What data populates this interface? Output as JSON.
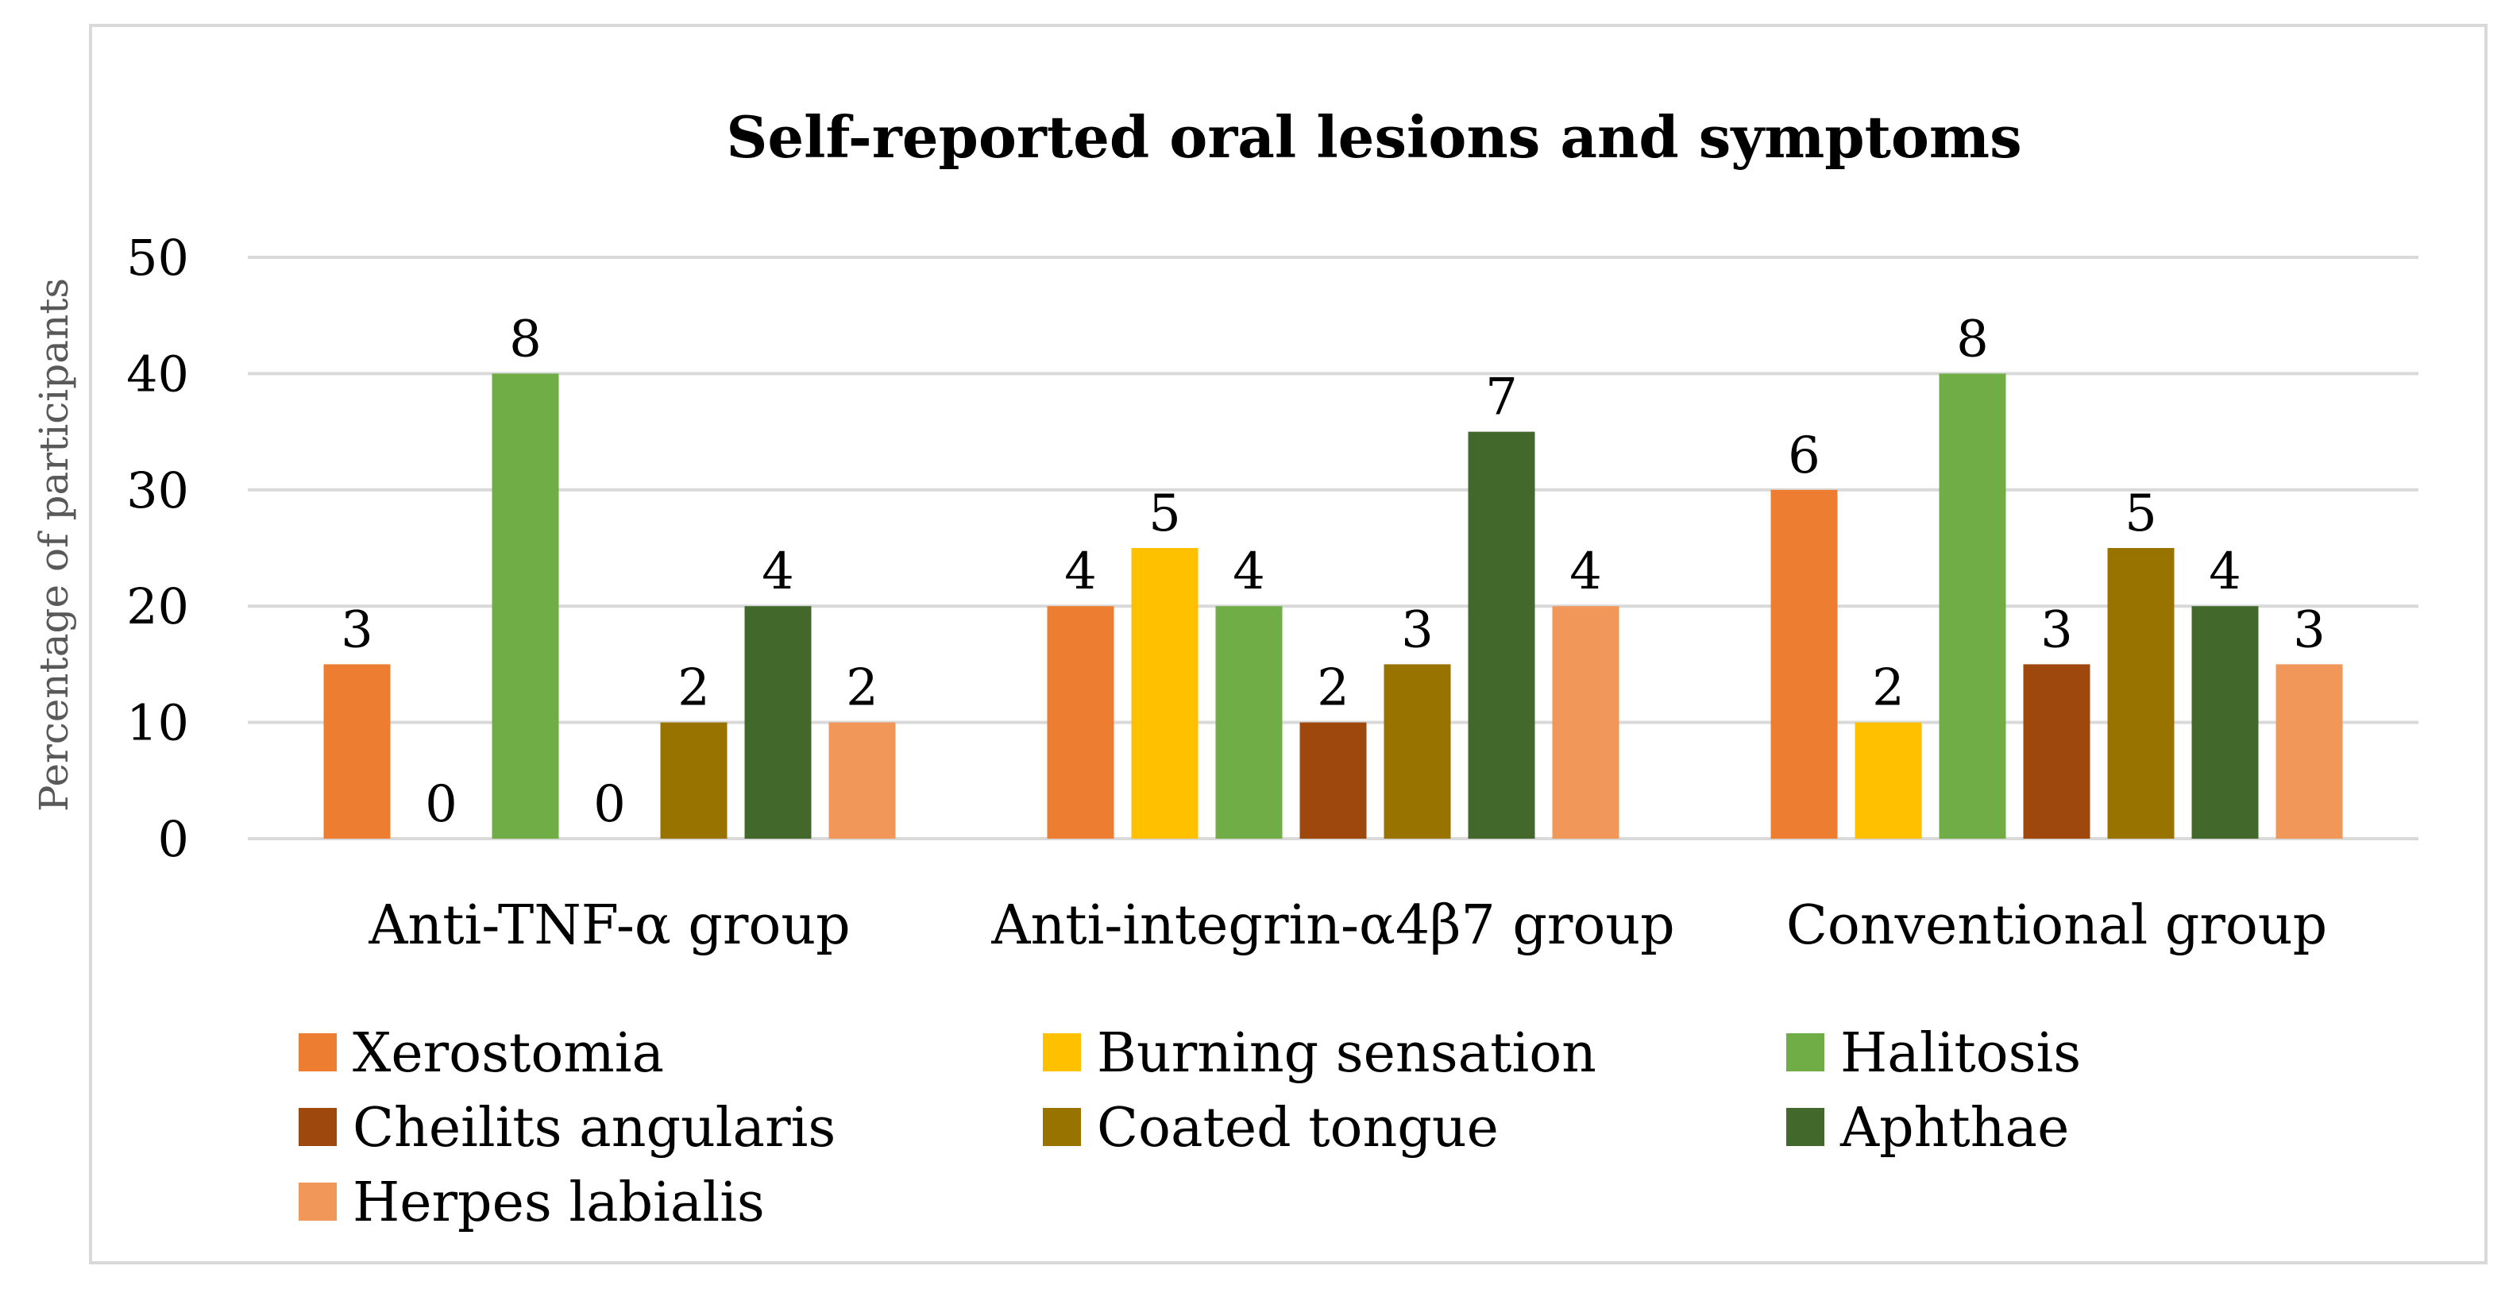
{
  "chart_data": {
    "type": "bar",
    "title": "Self-reported oral lesions and symptoms",
    "xlabel": "",
    "ylabel": "Percentage of participants",
    "ylim": [
      0,
      50
    ],
    "yticks": [
      0,
      10,
      20,
      30,
      40,
      50
    ],
    "grid": true,
    "legend_position": "bottom",
    "categories": [
      "Anti-TNF-α group",
      "Anti-integrin-α4β7 group",
      "Conventional group"
    ],
    "series": [
      {
        "name": "Xerostomia",
        "color": "#ED7D31",
        "values": [
          15,
          20,
          30
        ],
        "labels": [
          "3",
          "4",
          "6"
        ]
      },
      {
        "name": "Burning sensation",
        "color": "#FFC000",
        "values": [
          0,
          25,
          10
        ],
        "labels": [
          "0",
          "5",
          "2"
        ]
      },
      {
        "name": "Halitosis",
        "color": "#70AD47",
        "values": [
          40,
          20,
          40
        ],
        "labels": [
          "8",
          "4",
          "8"
        ]
      },
      {
        "name": "Cheilits angularis",
        "color": "#9E480E",
        "values": [
          0,
          10,
          15
        ],
        "labels": [
          "0",
          "2",
          "3"
        ]
      },
      {
        "name": "Coated tongue",
        "color": "#997300",
        "values": [
          10,
          15,
          25
        ],
        "labels": [
          "2",
          "3",
          "5"
        ]
      },
      {
        "name": "Aphthae",
        "color": "#43682B",
        "values": [
          20,
          35,
          20
        ],
        "labels": [
          "4",
          "7",
          "4"
        ]
      },
      {
        "name": "Herpes labialis",
        "color": "#F1975A",
        "values": [
          10,
          20,
          15
        ],
        "labels": [
          "2",
          "4",
          "3"
        ]
      }
    ]
  }
}
